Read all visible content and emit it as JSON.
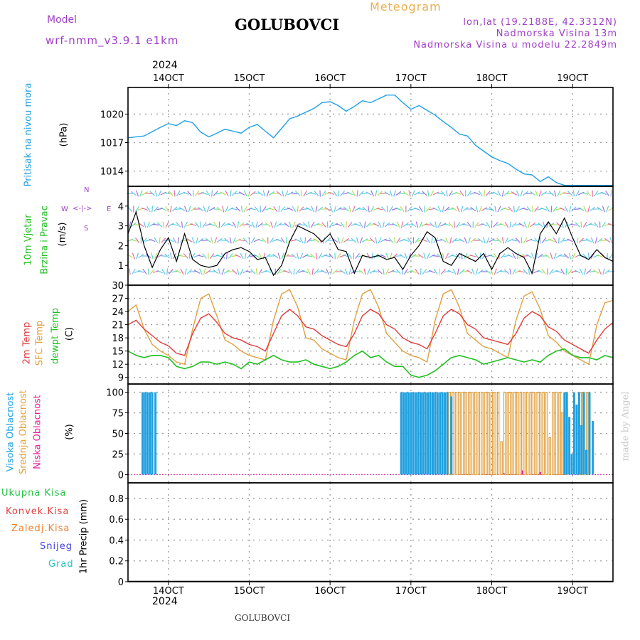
{
  "header": {
    "model_label": "Model",
    "model_name": "wrf-nmm_v3.9.1 e1km",
    "station": "GOLUBOVCI",
    "meteogram": "Meteogram",
    "lonlat": "lon,lat (19.2188E, 42.3312N)",
    "elevation": "Nadmorska Visina 13m",
    "model_elevation": "Nadmorska Visina u modelu 22.2849m",
    "year_top": "2024",
    "year_bottom": "2024",
    "footer_station": "GOLUBOVCI",
    "watermark": "made by Angel"
  },
  "x_axis": {
    "date_labels": [
      "14OCT",
      "15OCT",
      "16OCT",
      "17OCT",
      "18OCT",
      "19OCT"
    ]
  },
  "panel_labels": {
    "pressure": {
      "name": "Pritisak na nivou mora",
      "unit": "(hPa)"
    },
    "wind": {
      "name1": "10m Vjetar",
      "name2": "Brzina i Pravac",
      "unit": "(m/s)",
      "compass_n": "N",
      "compass_s": "S",
      "compass_w": "W",
      "compass_e": "E"
    },
    "temp": {
      "t2m": "2m Temp",
      "sfc": "SFC Temp",
      "dew": "dewpt Temp",
      "unit": "(C)"
    },
    "cloud": {
      "high": "Visoka Oblacnost",
      "mid": "Srednja Oblacnost",
      "low": "Niska Oblacnost",
      "unit": "(%)"
    },
    "precip": {
      "unit": "1hr Precip (mm)"
    }
  },
  "precip_legend": [
    {
      "label": "Ukupna Kisa",
      "color": "#20c040"
    },
    {
      "label": "Konvek.Kisa",
      "color": "#e04040"
    },
    {
      "label": "Zaledj.Kisa",
      "color": "#f08030"
    },
    {
      "label": "Snijeg",
      "color": "#4040e0"
    },
    {
      "label": "Grad",
      "color": "#20c0c0"
    }
  ],
  "colors": {
    "pressure": "#1ea0e6",
    "t2m": "#e03c3c",
    "sfc": "#e0a040",
    "dew": "#20c020",
    "high_cloud": "#20a0e0",
    "mid_cloud": "#e0a040",
    "low_cloud": "#e020a0",
    "violet_text": "#a040c8",
    "meteogram_text": "#e8b050"
  },
  "chart_data": [
    {
      "type": "line",
      "panel": "pressure",
      "title": "Pritisak na nivou mora",
      "ylabel": "(hPa)",
      "yticks": [
        1014,
        1017,
        1020
      ],
      "ylim": [
        1012.4,
        1022.8
      ],
      "xlim_days": [
        13.5,
        19.5
      ],
      "x": [
        13.5,
        13.7,
        13.9,
        14.0,
        14.1,
        14.2,
        14.3,
        14.4,
        14.5,
        14.6,
        14.7,
        14.8,
        14.9,
        15.0,
        15.1,
        15.2,
        15.3,
        15.4,
        15.5,
        15.6,
        15.7,
        15.8,
        15.9,
        16.0,
        16.1,
        16.2,
        16.3,
        16.4,
        16.5,
        16.6,
        16.7,
        16.8,
        16.9,
        17.0,
        17.1,
        17.2,
        17.3,
        17.4,
        17.5,
        17.6,
        17.7,
        17.8,
        17.9,
        18.0,
        18.1,
        18.2,
        18.3,
        18.4,
        18.5,
        18.6,
        18.7,
        18.8,
        18.9,
        19.0,
        19.1,
        19.2,
        19.3,
        19.4,
        19.5
      ],
      "series": [
        {
          "name": "Pritisak na nivou mora",
          "values": [
            1017.5,
            1017.7,
            1018.6,
            1019.0,
            1018.8,
            1019.3,
            1019.1,
            1018.1,
            1017.6,
            1018.0,
            1018.4,
            1018.2,
            1018.0,
            1018.6,
            1018.9,
            1018.2,
            1017.5,
            1018.5,
            1019.5,
            1019.8,
            1020.2,
            1020.6,
            1021.2,
            1021.3,
            1020.9,
            1020.3,
            1020.8,
            1021.4,
            1021.2,
            1021.6,
            1022.0,
            1022.0,
            1021.2,
            1020.5,
            1020.9,
            1020.4,
            1019.9,
            1019.2,
            1018.6,
            1017.9,
            1017.7,
            1016.7,
            1016.1,
            1015.5,
            1015.1,
            1014.8,
            1014.2,
            1013.7,
            1013.6,
            1012.9,
            1013.4,
            1012.8,
            1012.5,
            1012.5,
            1012.5,
            1012.5,
            1012.5,
            1012.5,
            1012.5
          ]
        }
      ]
    },
    {
      "type": "line",
      "panel": "wind",
      "title": "10m Vjetar Brzina i Pravac",
      "ylabel": "(m/s)",
      "yticks": [
        0,
        1,
        2,
        3,
        4
      ],
      "ylim": [
        0,
        5
      ],
      "xlim_days": [
        13.5,
        19.5
      ],
      "x": [
        13.5,
        13.6,
        13.7,
        13.8,
        13.9,
        14.0,
        14.1,
        14.2,
        14.3,
        14.4,
        14.5,
        14.6,
        14.7,
        14.8,
        14.9,
        15.0,
        15.1,
        15.2,
        15.3,
        15.4,
        15.5,
        15.6,
        15.7,
        15.8,
        15.9,
        16.0,
        16.1,
        16.2,
        16.3,
        16.4,
        16.5,
        16.6,
        16.7,
        16.8,
        16.9,
        17.0,
        17.1,
        17.2,
        17.3,
        17.4,
        17.5,
        17.6,
        17.7,
        17.8,
        17.9,
        18.0,
        18.1,
        18.2,
        18.3,
        18.4,
        18.5,
        18.6,
        18.7,
        18.8,
        18.9,
        19.0,
        19.1,
        19.2,
        19.3,
        19.4,
        19.5
      ],
      "series": [
        {
          "name": "10m Vjetar Brzina i Pravac",
          "values": [
            2.6,
            3.7,
            2.0,
            0.9,
            1.8,
            2.4,
            1.2,
            2.6,
            1.3,
            1.0,
            0.9,
            1.0,
            1.6,
            1.8,
            1.9,
            1.7,
            1.3,
            1.4,
            0.5,
            1.0,
            2.2,
            3.0,
            2.8,
            2.6,
            2.2,
            2.6,
            1.8,
            1.7,
            0.6,
            1.5,
            1.4,
            1.5,
            1.3,
            1.4,
            0.8,
            1.5,
            2.0,
            2.7,
            2.4,
            1.2,
            1.0,
            1.6,
            1.4,
            1.2,
            1.6,
            0.8,
            1.6,
            1.9,
            1.6,
            1.4,
            0.6,
            2.6,
            3.2,
            2.6,
            3.4,
            2.4,
            1.5,
            1.3,
            1.8,
            1.4,
            1.2
          ]
        }
      ]
    },
    {
      "type": "line",
      "panel": "temperature",
      "ylabel": "(C)",
      "yticks": [
        9,
        12,
        15,
        18,
        21,
        24,
        27,
        30
      ],
      "ylim": [
        7.5,
        30
      ],
      "xlim_days": [
        13.5,
        19.5
      ],
      "x": [
        13.5,
        13.6,
        13.7,
        13.8,
        13.9,
        14.0,
        14.1,
        14.2,
        14.3,
        14.4,
        14.5,
        14.6,
        14.7,
        14.8,
        14.9,
        15.0,
        15.1,
        15.2,
        15.3,
        15.4,
        15.5,
        15.6,
        15.7,
        15.8,
        15.9,
        16.0,
        16.1,
        16.2,
        16.3,
        16.4,
        16.5,
        16.6,
        16.7,
        16.8,
        16.9,
        17.0,
        17.1,
        17.2,
        17.3,
        17.4,
        17.5,
        17.6,
        17.7,
        17.8,
        17.9,
        18.0,
        18.1,
        18.2,
        18.3,
        18.4,
        18.5,
        18.6,
        18.7,
        18.8,
        18.9,
        19.0,
        19.1,
        19.2,
        19.3,
        19.4,
        19.5
      ],
      "series": [
        {
          "name": "2m Temp",
          "values": [
            21.0,
            22.0,
            20.0,
            18.5,
            17.0,
            16.2,
            14.5,
            14.0,
            19.0,
            22.5,
            23.5,
            21.5,
            19.0,
            18.0,
            17.5,
            16.5,
            16.0,
            15.0,
            19.0,
            23.0,
            24.5,
            23.0,
            20.5,
            20.0,
            18.5,
            17.5,
            16.5,
            16.0,
            19.0,
            23.0,
            24.5,
            23.5,
            21.0,
            20.0,
            18.0,
            17.0,
            16.5,
            15.5,
            19.0,
            23.0,
            24.5,
            23.5,
            21.0,
            20.0,
            18.0,
            17.5,
            17.0,
            16.5,
            19.0,
            22.5,
            24.0,
            23.0,
            20.5,
            19.5,
            17.5,
            16.5,
            15.5,
            14.5,
            17.5,
            20.0,
            21.5
          ]
        },
        {
          "name": "SFC Temp",
          "values": [
            24.0,
            25.5,
            20.0,
            16.5,
            15.0,
            14.0,
            12.5,
            12.0,
            20.0,
            27.0,
            28.0,
            23.0,
            17.5,
            16.5,
            15.0,
            14.0,
            13.5,
            13.0,
            22.0,
            28.0,
            29.0,
            25.0,
            18.0,
            17.5,
            15.5,
            14.5,
            13.5,
            13.0,
            22.0,
            28.0,
            29.0,
            25.0,
            19.0,
            17.0,
            15.0,
            14.0,
            13.5,
            12.5,
            22.0,
            28.0,
            29.0,
            25.0,
            19.0,
            17.5,
            16.0,
            15.5,
            14.5,
            13.5,
            22.0,
            27.5,
            28.5,
            24.5,
            18.5,
            17.0,
            15.0,
            14.0,
            13.0,
            12.0,
            21.0,
            26.0,
            26.5
          ]
        },
        {
          "name": "dewpt Temp",
          "values": [
            15.0,
            14.0,
            13.5,
            14.0,
            14.0,
            13.5,
            11.5,
            11.0,
            11.5,
            12.5,
            12.5,
            12.0,
            12.5,
            12.0,
            11.0,
            12.5,
            12.0,
            13.0,
            14.0,
            13.0,
            12.5,
            12.5,
            13.0,
            12.0,
            11.5,
            11.0,
            11.5,
            12.5,
            14.0,
            15.0,
            13.5,
            14.0,
            12.5,
            11.5,
            11.5,
            9.5,
            9.0,
            9.5,
            10.5,
            12.0,
            13.5,
            14.0,
            13.5,
            13.0,
            12.0,
            12.5,
            13.0,
            13.5,
            13.0,
            12.5,
            13.0,
            12.5,
            14.0,
            15.0,
            15.5,
            14.0,
            13.5,
            13.5,
            13.0,
            14.0,
            13.5
          ]
        }
      ]
    },
    {
      "type": "bar",
      "panel": "cloud",
      "ylabel": "(%)",
      "yticks": [
        0,
        25,
        50,
        75,
        100
      ],
      "ylim": [
        -10,
        110
      ],
      "xlim_days": [
        13.5,
        19.5
      ],
      "high_cloud_bars": [
        [
          13.68,
          100
        ],
        [
          13.71,
          100
        ],
        [
          13.74,
          100
        ],
        [
          13.77,
          100
        ],
        [
          13.8,
          100
        ],
        [
          13.84,
          100
        ],
        [
          16.88,
          100
        ],
        [
          16.91,
          100
        ],
        [
          16.94,
          100
        ],
        [
          16.97,
          100
        ],
        [
          17.0,
          100
        ],
        [
          17.03,
          100
        ],
        [
          17.06,
          100
        ],
        [
          17.09,
          100
        ],
        [
          17.12,
          100
        ],
        [
          17.15,
          100
        ],
        [
          17.18,
          100
        ],
        [
          17.21,
          100
        ],
        [
          17.24,
          100
        ],
        [
          17.27,
          100
        ],
        [
          17.3,
          100
        ],
        [
          17.33,
          100
        ],
        [
          17.36,
          100
        ],
        [
          17.39,
          100
        ],
        [
          17.42,
          100
        ],
        [
          17.45,
          100
        ],
        [
          17.5,
          95
        ],
        [
          18.9,
          100
        ],
        [
          18.93,
          100
        ],
        [
          18.96,
          70
        ],
        [
          18.99,
          25
        ],
        [
          19.02,
          100
        ],
        [
          19.05,
          85
        ],
        [
          19.08,
          100
        ],
        [
          19.11,
          60
        ],
        [
          19.14,
          100
        ],
        [
          19.17,
          30
        ],
        [
          19.21,
          100
        ],
        [
          19.25,
          65
        ]
      ],
      "mid_cloud_bars": [
        [
          17.48,
          100
        ],
        [
          17.52,
          100
        ],
        [
          17.56,
          100
        ],
        [
          17.6,
          100
        ],
        [
          17.64,
          100
        ],
        [
          17.68,
          100
        ],
        [
          17.72,
          100
        ],
        [
          17.76,
          100
        ],
        [
          17.8,
          100
        ],
        [
          17.84,
          100
        ],
        [
          17.88,
          100
        ],
        [
          17.92,
          100
        ],
        [
          17.96,
          100
        ],
        [
          18.0,
          100
        ],
        [
          18.04,
          100
        ],
        [
          18.08,
          100
        ],
        [
          18.12,
          40
        ],
        [
          18.16,
          100
        ],
        [
          18.2,
          100
        ],
        [
          18.24,
          100
        ],
        [
          18.28,
          100
        ],
        [
          18.32,
          100
        ],
        [
          18.36,
          100
        ],
        [
          18.4,
          100
        ],
        [
          18.44,
          100
        ],
        [
          18.48,
          100
        ],
        [
          18.52,
          100
        ],
        [
          18.56,
          100
        ],
        [
          18.6,
          100
        ],
        [
          18.64,
          100
        ],
        [
          18.68,
          100
        ],
        [
          18.72,
          45
        ],
        [
          18.76,
          100
        ],
        [
          18.8,
          100
        ],
        [
          18.84,
          100
        ],
        [
          18.87,
          75
        ],
        [
          18.92,
          100
        ],
        [
          19.1,
          100
        ],
        [
          19.13,
          100
        ],
        [
          19.18,
          100
        ]
      ],
      "low_cloud_bars": [
        [
          18.15,
          2
        ],
        [
          18.38,
          5
        ],
        [
          18.6,
          3
        ]
      ]
    },
    {
      "type": "bar",
      "panel": "precip",
      "ylabel": "1hr Precip (mm)",
      "yticks": [
        0,
        0.2,
        0.4,
        0.6,
        0.8
      ],
      "ylim": [
        0,
        0.95
      ],
      "xlim_days": [
        13.5,
        19.5
      ],
      "values": []
    }
  ]
}
